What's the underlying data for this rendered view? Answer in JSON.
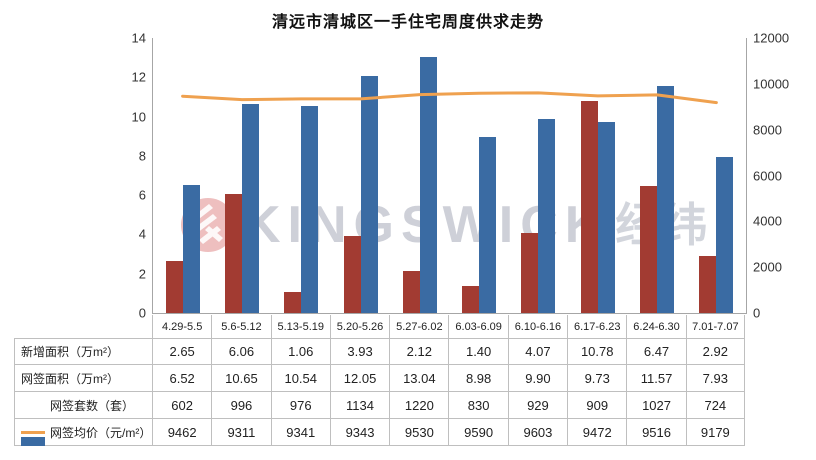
{
  "title": "清远市清城区一手住宅周度供求走势",
  "watermark": {
    "text_en": "KINGSWICK",
    "text_cn": "经纬",
    "logo": "kingswick-logo"
  },
  "colors": {
    "new_area_bar": "#A23B32",
    "signed_area_bar": "#3A6BA3",
    "avg_price_line": "#EFA14F",
    "axis_line": "#A6A6A6",
    "table_border": "#BFBFBF"
  },
  "chart_data": {
    "type": "bar",
    "subtype": "grouped-bars-with-secondary-axis-line",
    "title": "清远市清城区一手住宅周度供求走势",
    "categories": [
      "4.29-5.5",
      "5.6-5.12",
      "5.13-5.19",
      "5.20-5.26",
      "5.27-6.02",
      "6.03-6.09",
      "6.10-6.16",
      "6.17-6.23",
      "6.24-6.30",
      "7.01-7.07"
    ],
    "series": [
      {
        "name": "新增面积（万m²）",
        "type": "bar",
        "axis": "left",
        "color": "#A23B32",
        "values": [
          "2.65",
          "6.06",
          "1.06",
          "3.93",
          "2.12",
          "1.40",
          "4.07",
          "10.78",
          "6.47",
          "2.92"
        ]
      },
      {
        "name": "网签面积（万m²）",
        "type": "bar",
        "axis": "left",
        "color": "#3A6BA3",
        "values": [
          "6.52",
          "10.65",
          "10.54",
          "12.05",
          "13.04",
          "8.98",
          "9.90",
          "9.73",
          "11.57",
          "7.93"
        ]
      },
      {
        "name": "网签套数（套）",
        "type": "table-only",
        "axis": "none",
        "color": "",
        "values": [
          "602",
          "996",
          "976",
          "1134",
          "1220",
          "830",
          "929",
          "909",
          "1027",
          "724"
        ]
      },
      {
        "name": "网签均价（元/m²）",
        "type": "line",
        "axis": "right",
        "color": "#EFA14F",
        "values": [
          "9462",
          "9311",
          "9341",
          "9343",
          "9530",
          "9590",
          "9603",
          "9472",
          "9516",
          "9179"
        ]
      }
    ],
    "left_axis": {
      "min": 0,
      "max": 14,
      "ticks": [
        0,
        2,
        4,
        6,
        8,
        10,
        12,
        14
      ]
    },
    "right_axis": {
      "min": 0,
      "max": 12000,
      "ticks": [
        0,
        2000,
        4000,
        6000,
        8000,
        10000,
        12000
      ]
    },
    "grid": false,
    "legend_position": "data-table-left-column"
  }
}
